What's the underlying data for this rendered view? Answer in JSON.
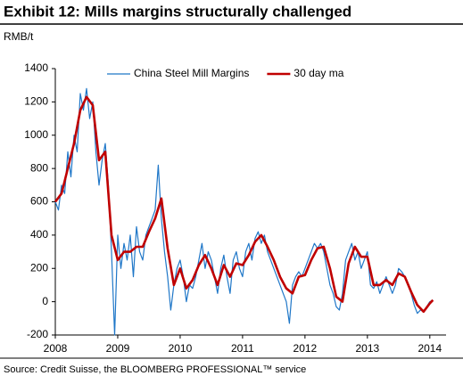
{
  "chart_data": {
    "type": "line",
    "title": "Exhibit 12: Mills margins structurally challenged",
    "y_axis_label": "RMB/t",
    "source": "Source: Credit Suisse, the BLOOMBERG PROFESSIONAL™ service",
    "xlim": [
      2008,
      2014.26
    ],
    "xticks": [
      2008,
      2009,
      2010,
      2011,
      2012,
      2013,
      2014
    ],
    "ylim": [
      -200,
      1400
    ],
    "yticks": [
      -200,
      0,
      200,
      400,
      600,
      800,
      1000,
      1200,
      1400
    ],
    "grid": false,
    "legend": "top",
    "series": [
      {
        "name": "China Steel Mill Margins",
        "color": "#1f77c8",
        "width": 1.2,
        "x": [
          2008.0,
          2008.05,
          2008.1,
          2008.15,
          2008.2,
          2008.25,
          2008.3,
          2008.35,
          2008.4,
          2008.45,
          2008.5,
          2008.55,
          2008.6,
          2008.65,
          2008.7,
          2008.75,
          2008.8,
          2008.85,
          2008.9,
          2008.95,
          2009.0,
          2009.05,
          2009.1,
          2009.15,
          2009.2,
          2009.25,
          2009.3,
          2009.35,
          2009.4,
          2009.45,
          2009.5,
          2009.55,
          2009.6,
          2009.65,
          2009.7,
          2009.75,
          2009.8,
          2009.85,
          2009.9,
          2009.95,
          2010.0,
          2010.05,
          2010.1,
          2010.15,
          2010.2,
          2010.25,
          2010.3,
          2010.35,
          2010.4,
          2010.45,
          2010.5,
          2010.55,
          2010.6,
          2010.65,
          2010.7,
          2010.75,
          2010.8,
          2010.85,
          2010.9,
          2010.95,
          2011.0,
          2011.05,
          2011.1,
          2011.15,
          2011.2,
          2011.25,
          2011.3,
          2011.35,
          2011.4,
          2011.45,
          2011.5,
          2011.55,
          2011.6,
          2011.65,
          2011.7,
          2011.75,
          2011.8,
          2011.85,
          2011.9,
          2011.95,
          2012.0,
          2012.05,
          2012.1,
          2012.15,
          2012.2,
          2012.25,
          2012.3,
          2012.35,
          2012.4,
          2012.45,
          2012.5,
          2012.55,
          2012.6,
          2012.65,
          2012.7,
          2012.75,
          2012.8,
          2012.85,
          2012.9,
          2012.95,
          2013.0,
          2013.05,
          2013.1,
          2013.15,
          2013.2,
          2013.25,
          2013.3,
          2013.35,
          2013.4,
          2013.45,
          2013.5,
          2013.55,
          2013.6,
          2013.65,
          2013.7,
          2013.75,
          2013.8,
          2013.85,
          2013.9,
          2013.95,
          2014.0,
          2014.05
        ],
        "values": [
          600,
          550,
          700,
          650,
          900,
          750,
          1000,
          900,
          1250,
          1150,
          1280,
          1100,
          1200,
          900,
          700,
          850,
          950,
          700,
          300,
          -200,
          400,
          200,
          350,
          250,
          400,
          150,
          450,
          300,
          250,
          400,
          450,
          500,
          550,
          820,
          500,
          300,
          150,
          -50,
          100,
          200,
          250,
          150,
          0,
          100,
          80,
          150,
          250,
          350,
          200,
          300,
          250,
          150,
          50,
          200,
          280,
          150,
          50,
          250,
          300,
          200,
          150,
          300,
          350,
          250,
          380,
          420,
          350,
          400,
          300,
          250,
          200,
          150,
          100,
          50,
          0,
          -130,
          100,
          150,
          180,
          150,
          200,
          250,
          300,
          350,
          320,
          350,
          300,
          200,
          100,
          50,
          -30,
          -50,
          50,
          250,
          300,
          350,
          250,
          300,
          200,
          250,
          300,
          100,
          80,
          120,
          50,
          100,
          150,
          100,
          50,
          100,
          200,
          180,
          150,
          100,
          50,
          -20,
          -70,
          -50,
          -60,
          -30,
          0,
          10
        ]
      },
      {
        "name": "30 day ma",
        "color": "#c00000",
        "width": 2.6,
        "x": [
          2008.0,
          2008.1,
          2008.2,
          2008.3,
          2008.4,
          2008.5,
          2008.6,
          2008.7,
          2008.8,
          2008.85,
          2008.9,
          2009.0,
          2009.1,
          2009.2,
          2009.3,
          2009.4,
          2009.5,
          2009.6,
          2009.7,
          2009.8,
          2009.9,
          2010.0,
          2010.1,
          2010.2,
          2010.3,
          2010.4,
          2010.5,
          2010.6,
          2010.7,
          2010.8,
          2010.9,
          2011.0,
          2011.1,
          2011.2,
          2011.3,
          2011.4,
          2011.5,
          2011.6,
          2011.7,
          2011.8,
          2011.9,
          2012.0,
          2012.1,
          2012.2,
          2012.3,
          2012.4,
          2012.5,
          2012.6,
          2012.7,
          2012.8,
          2012.9,
          2013.0,
          2013.1,
          2013.2,
          2013.3,
          2013.4,
          2013.5,
          2013.6,
          2013.7,
          2013.8,
          2013.9,
          2014.0,
          2014.05
        ],
        "values": [
          600,
          650,
          800,
          950,
          1150,
          1230,
          1180,
          850,
          900,
          650,
          400,
          250,
          300,
          300,
          330,
          330,
          420,
          500,
          620,
          320,
          100,
          200,
          80,
          130,
          220,
          280,
          200,
          100,
          220,
          150,
          230,
          220,
          280,
          360,
          400,
          330,
          250,
          150,
          80,
          50,
          150,
          160,
          250,
          320,
          330,
          200,
          30,
          0,
          230,
          330,
          270,
          270,
          100,
          100,
          130,
          100,
          170,
          150,
          60,
          -20,
          -60,
          -10,
          10
        ]
      }
    ]
  }
}
